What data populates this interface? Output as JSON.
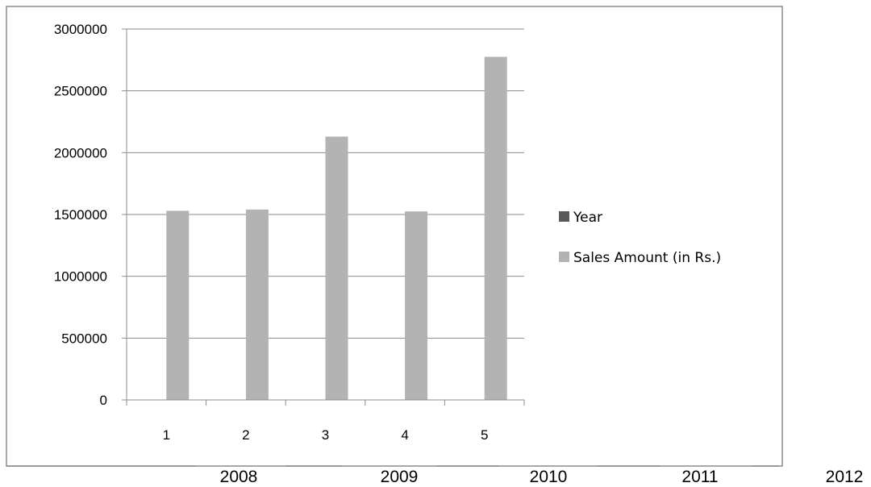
{
  "chart_data": {
    "type": "bar",
    "categories": [
      "1",
      "2",
      "3",
      "4",
      "5"
    ],
    "series": [
      {
        "name": "Year",
        "values": [
          2008,
          2009,
          2010,
          2011,
          2012
        ],
        "color": "#595959"
      },
      {
        "name": "Sales Amount (in Rs.)",
        "values": [
          1530000,
          1540000,
          2130000,
          1525000,
          2775000
        ],
        "color": "#b3b3b3"
      }
    ],
    "y_ticks": [
      "0",
      "500000",
      "1000000",
      "1500000",
      "2000000",
      "2500000",
      "3000000"
    ],
    "ylim": [
      0,
      3000000
    ],
    "grid": true,
    "legend_position": "right",
    "year_labels": [
      "2008",
      "2009",
      "2010",
      "2011",
      "2012"
    ]
  }
}
